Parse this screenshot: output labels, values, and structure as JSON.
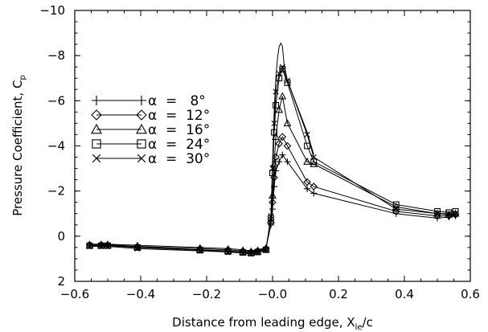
{
  "chart_data": {
    "type": "line",
    "xlabel": "Distance from leading edge, X",
    "xlabel_sub": "le",
    "xlabel_suffix": "/c",
    "ylabel": "Pressure Coefficient, C",
    "ylabel_sub": "p",
    "xlim": [
      -0.6,
      0.6
    ],
    "ylim": [
      2,
      -10
    ],
    "y_inverted": true,
    "grid": false,
    "legend_placement": "left",
    "xticks": [
      -0.6,
      -0.4,
      -0.2,
      0.0,
      0.2,
      0.4,
      0.6
    ],
    "xtick_labels": [
      "−0.6",
      "−0.4",
      "−0.2",
      "−0.0",
      "0.2",
      "0.4",
      "0.6"
    ],
    "yticks": [
      -10,
      -8,
      -6,
      -4,
      -2,
      0,
      2
    ],
    "ytick_labels": [
      "−10",
      "−8",
      "−6",
      "−4",
      "−2",
      "0",
      "2"
    ],
    "series": [
      {
        "name": "α  =   8°",
        "marker": "plus",
        "x": [
          -0.555,
          -0.52,
          -0.5,
          -0.41,
          -0.22,
          -0.135,
          -0.09,
          -0.065,
          -0.045,
          -0.02,
          -0.005,
          0.0,
          0.005,
          0.01,
          0.02,
          0.03,
          0.045,
          0.105,
          0.125,
          0.375,
          0.5,
          0.535,
          0.555
        ],
        "y": [
          0.35,
          0.35,
          0.35,
          0.4,
          0.5,
          0.55,
          0.6,
          0.65,
          0.6,
          0.5,
          -0.5,
          -1.2,
          -2.2,
          -2.9,
          -3.3,
          -3.6,
          -3.3,
          -2.1,
          -1.9,
          -1.0,
          -0.8,
          -0.85,
          -0.9
        ]
      },
      {
        "name": "α  =  12°",
        "marker": "diamond",
        "x": [
          -0.555,
          -0.52,
          -0.5,
          -0.41,
          -0.22,
          -0.135,
          -0.09,
          -0.065,
          -0.045,
          -0.02,
          -0.005,
          0.0,
          0.005,
          0.01,
          0.02,
          0.03,
          0.045,
          0.105,
          0.125,
          0.375,
          0.5,
          0.535,
          0.555
        ],
        "y": [
          0.38,
          0.38,
          0.38,
          0.45,
          0.55,
          0.6,
          0.65,
          0.7,
          0.65,
          0.55,
          -0.6,
          -1.5,
          -2.6,
          -3.5,
          -4.1,
          -4.4,
          -4.0,
          -2.4,
          -2.2,
          -1.1,
          -0.9,
          -0.9,
          -0.95
        ]
      },
      {
        "name": "α  =  16°",
        "marker": "triangle",
        "x": [
          -0.555,
          -0.52,
          -0.5,
          -0.41,
          -0.22,
          -0.135,
          -0.09,
          -0.065,
          -0.045,
          -0.02,
          -0.005,
          0.0,
          0.005,
          0.01,
          0.02,
          0.03,
          0.045,
          0.105,
          0.125,
          0.375,
          0.5,
          0.535,
          0.555
        ],
        "y": [
          0.4,
          0.4,
          0.4,
          0.48,
          0.6,
          0.65,
          0.7,
          0.72,
          0.68,
          0.58,
          -0.7,
          -1.8,
          -3.2,
          -4.4,
          -5.6,
          -6.2,
          -5.0,
          -3.3,
          -3.2,
          -1.3,
          -1.0,
          -0.95,
          -1.0
        ]
      },
      {
        "name": "α  =  24°",
        "marker": "square",
        "x": [
          -0.555,
          -0.52,
          -0.5,
          -0.41,
          -0.22,
          -0.135,
          -0.09,
          -0.065,
          -0.045,
          -0.02,
          -0.005,
          0.0,
          0.005,
          0.01,
          0.02,
          0.03,
          0.045,
          0.105,
          0.125,
          0.375,
          0.5,
          0.535,
          0.555
        ],
        "y": [
          0.42,
          0.42,
          0.42,
          0.5,
          0.62,
          0.68,
          0.72,
          0.75,
          0.7,
          0.6,
          -0.8,
          -2.8,
          -4.6,
          -5.8,
          -7.0,
          -7.4,
          -6.8,
          -4.0,
          -3.3,
          -1.4,
          -1.1,
          -1.05,
          -1.1
        ]
      },
      {
        "name": "α  =  30°",
        "marker": "cross",
        "x": [
          -0.555,
          -0.52,
          -0.5,
          -0.41,
          -0.22,
          -0.135,
          -0.09,
          -0.065,
          -0.045,
          -0.02,
          -0.005,
          0.0,
          0.005,
          0.01,
          0.02,
          0.03,
          0.045,
          0.105,
          0.125,
          0.375,
          0.5,
          0.535,
          0.555
        ],
        "y": [
          0.45,
          0.45,
          0.45,
          0.55,
          0.65,
          0.7,
          0.75,
          0.78,
          0.72,
          0.62,
          -0.9,
          -3.0,
          -5.0,
          -6.4,
          -7.2,
          -7.5,
          -6.9,
          -4.5,
          -3.5,
          -1.2,
          -1.0,
          -1.0,
          -1.0
        ]
      }
    ],
    "envelope": {
      "x": [
        -0.005,
        0.0,
        0.005,
        0.01,
        0.015,
        0.02,
        0.025,
        0.03,
        0.035,
        0.045,
        0.105,
        0.125
      ],
      "y": [
        -0.9,
        -3.2,
        -5.5,
        -7.0,
        -7.9,
        -8.4,
        -8.55,
        -8.4,
        -7.6,
        -6.9,
        -4.6,
        -3.6
      ]
    }
  }
}
